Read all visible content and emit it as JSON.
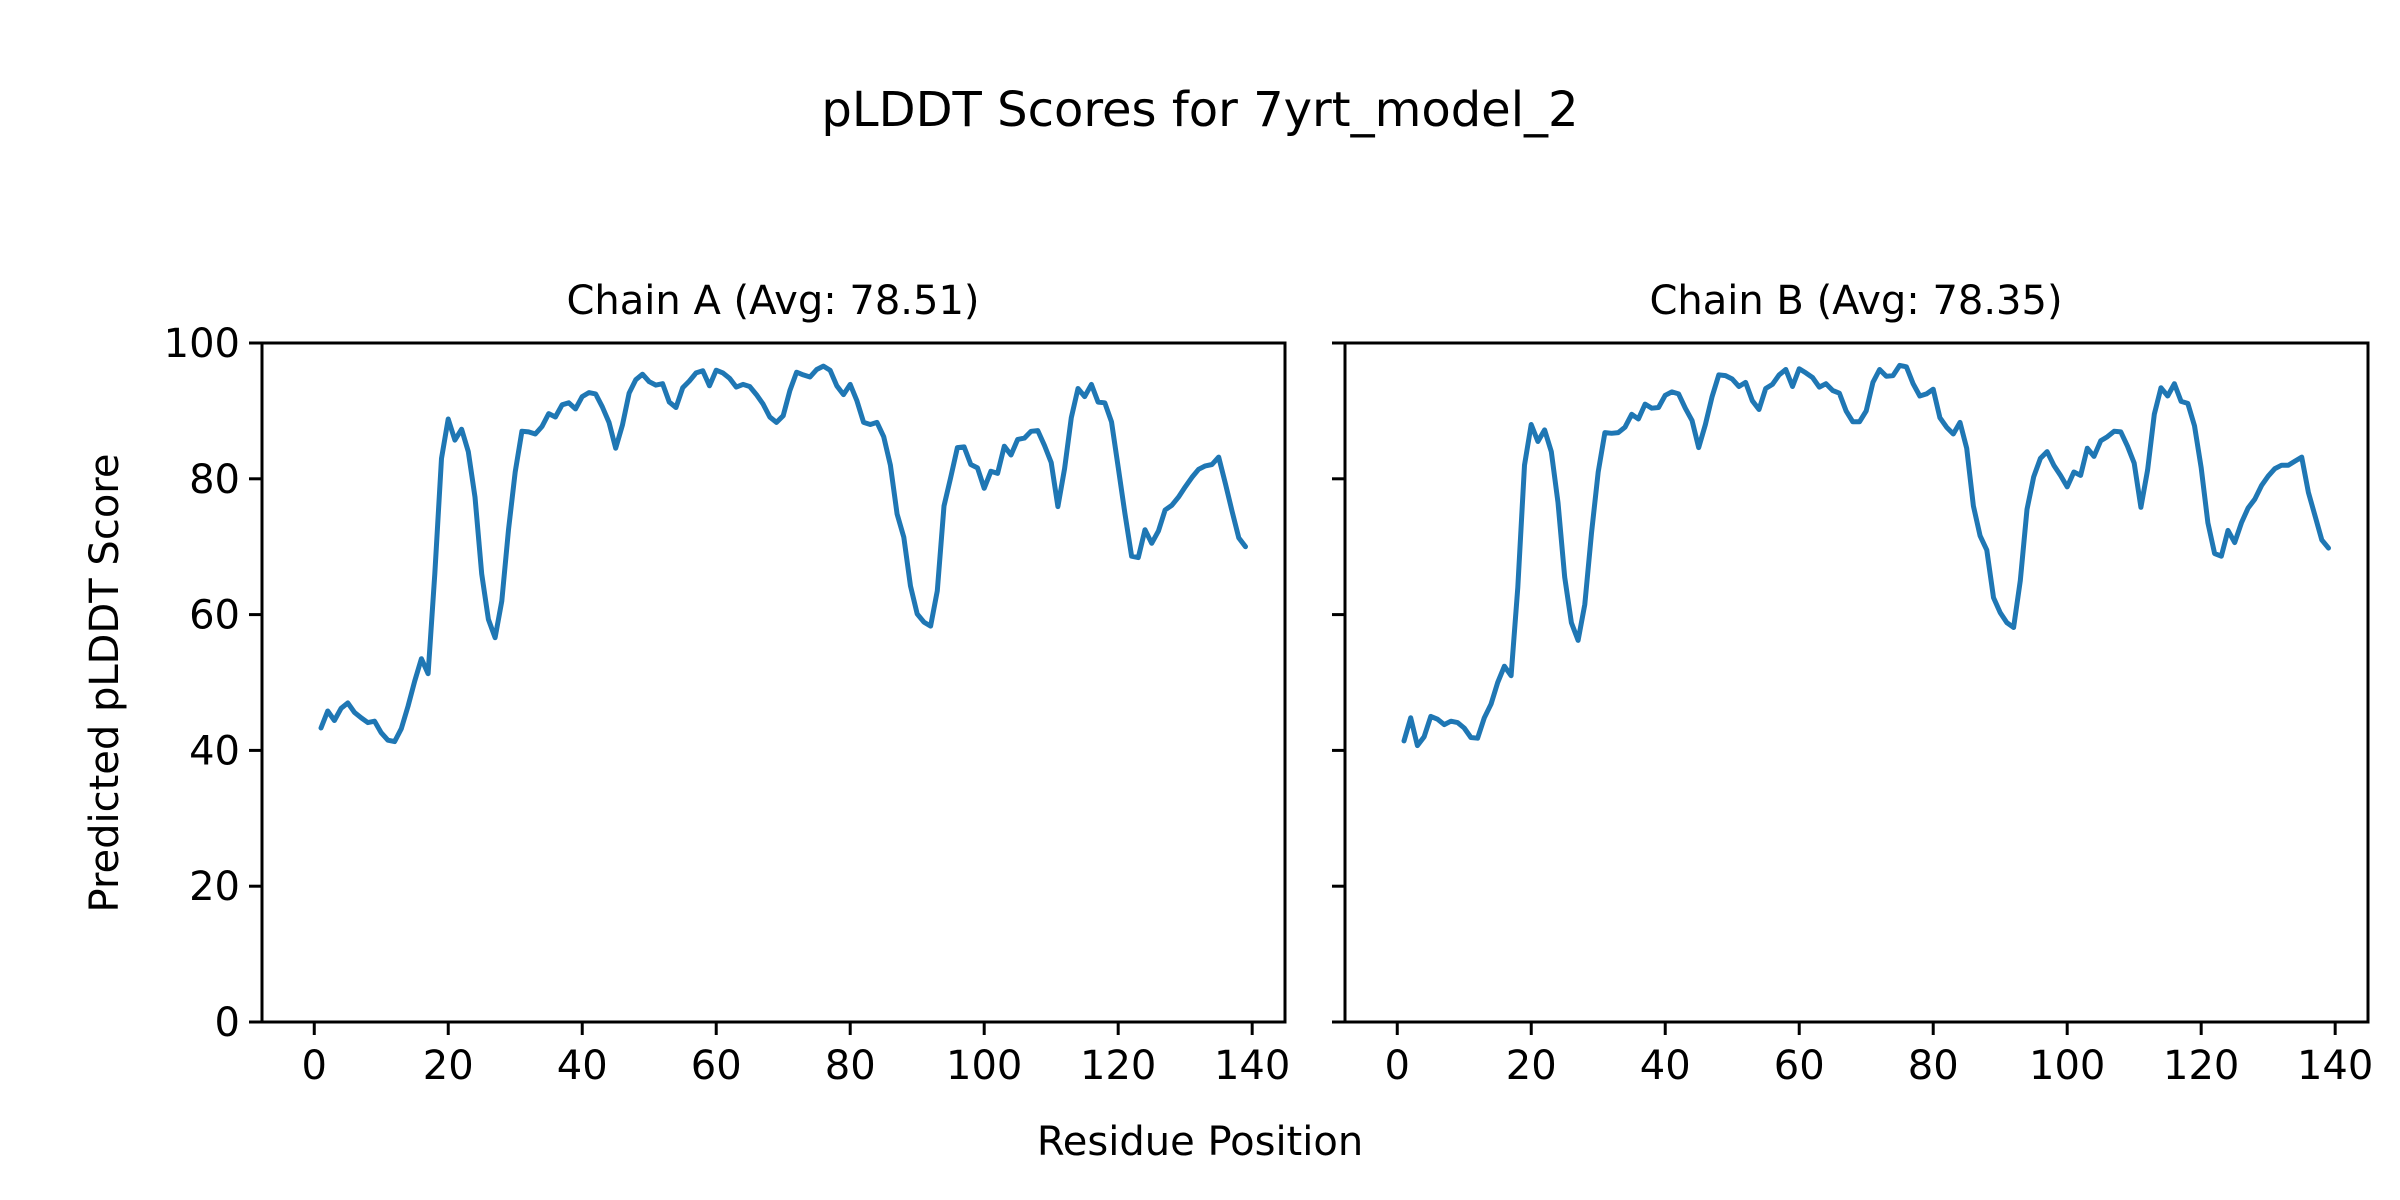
{
  "figure": {
    "suptitle": "pLDDT Scores for 7yrt_model_2",
    "xlabel": "Residue Position",
    "ylabel": "Predicted pLDDT Score",
    "background_color": "#ffffff",
    "text_color": "#000000",
    "spine_color": "#000000",
    "line_color": "#1f77b4"
  },
  "chart_data": [
    {
      "type": "line",
      "title": "Chain A (Avg: 78.51)",
      "chain": "A",
      "avg": 78.51,
      "xlabel": "Residue Position",
      "ylabel": "Predicted pLDDT Score",
      "xlim": [
        -7.8,
        144.9
      ],
      "ylim": [
        0,
        100
      ],
      "xticks": [
        0,
        20,
        40,
        60,
        80,
        100,
        120,
        140
      ],
      "yticks": [
        0,
        20,
        40,
        60,
        80,
        100
      ],
      "grid": false,
      "legend": "none",
      "series": [
        {
          "name": "Chain A pLDDT",
          "color": "#1f77b4",
          "x_start": 1,
          "x_step": 1,
          "n_points": 139,
          "y": [
            43.3,
            45.8,
            44.4,
            46.2,
            47.0,
            45.6,
            44.8,
            44.1,
            44.3,
            42.6,
            41.5,
            41.3,
            43.2,
            46.5,
            50.2,
            53.5,
            51.3,
            66.0,
            83.0,
            88.8,
            85.7,
            87.3,
            84.0,
            77.3,
            66.0,
            59.3,
            56.6,
            62.0,
            72.5,
            81.0,
            87.0,
            86.9,
            86.6,
            87.7,
            89.6,
            89.1,
            90.9,
            91.2,
            90.3,
            92.1,
            92.7,
            92.5,
            90.6,
            88.3,
            84.5,
            87.9,
            92.6,
            94.6,
            95.4,
            94.3,
            93.8,
            94.0,
            91.3,
            90.5,
            93.4,
            94.4,
            95.6,
            95.9,
            93.7,
            96.0,
            95.6,
            94.8,
            93.5,
            93.9,
            93.6,
            92.4,
            91.0,
            89.1,
            88.3,
            89.3,
            93.0,
            95.7,
            95.3,
            95.0,
            96.1,
            96.6,
            96.0,
            93.7,
            92.4,
            93.9,
            91.5,
            88.3,
            88.0,
            88.3,
            86.2,
            82.0,
            74.8,
            71.4,
            64.2,
            60.1,
            58.9,
            58.3,
            63.5,
            76.0,
            80.2,
            84.6,
            84.7,
            82.1,
            81.6,
            78.6,
            81.1,
            80.8,
            84.8,
            83.5,
            85.8,
            86.0,
            87.0,
            87.1,
            84.9,
            82.4,
            75.9,
            81.5,
            89.0,
            93.3,
            92.1,
            93.9,
            91.3,
            91.2,
            88.4,
            81.7,
            74.9,
            68.6,
            68.4,
            72.5,
            70.5,
            72.3,
            75.4,
            76.1,
            77.3,
            78.8,
            80.2,
            81.4,
            81.9,
            82.1,
            83.2,
            79.3,
            75.2,
            71.3,
            70.0
          ]
        }
      ]
    },
    {
      "type": "line",
      "title": "Chain B (Avg: 78.35)",
      "chain": "B",
      "avg": 78.35,
      "xlabel": "Residue Position",
      "ylabel": "Predicted pLDDT Score",
      "xlim": [
        -7.8,
        144.9
      ],
      "ylim": [
        0,
        100
      ],
      "xticks": [
        0,
        20,
        40,
        60,
        80,
        100,
        120,
        140
      ],
      "yticks": [
        0,
        20,
        40,
        60,
        80,
        100
      ],
      "grid": false,
      "legend": "none",
      "series": [
        {
          "name": "Chain B pLDDT",
          "color": "#1f77b4",
          "x_start": 1,
          "x_step": 1,
          "n_points": 139,
          "y": [
            41.4,
            44.8,
            40.7,
            42.0,
            45.0,
            44.6,
            43.8,
            44.3,
            44.1,
            43.3,
            41.9,
            41.8,
            44.8,
            46.8,
            50.0,
            52.4,
            51.0,
            64.0,
            82.0,
            88.0,
            85.5,
            87.2,
            84.0,
            76.5,
            65.5,
            58.8,
            56.2,
            61.5,
            72.0,
            81.0,
            86.8,
            86.7,
            86.8,
            87.6,
            89.5,
            88.8,
            91.0,
            90.4,
            90.5,
            92.3,
            92.8,
            92.5,
            90.4,
            88.6,
            84.6,
            88.0,
            92.1,
            95.3,
            95.2,
            94.7,
            93.6,
            94.2,
            91.5,
            90.2,
            93.3,
            93.9,
            95.3,
            96.1,
            93.6,
            96.2,
            95.6,
            94.9,
            93.5,
            94.0,
            93.0,
            92.6,
            90.0,
            88.4,
            88.4,
            90.0,
            94.2,
            96.1,
            95.1,
            95.2,
            96.7,
            96.5,
            94.0,
            92.2,
            92.5,
            93.2,
            89.0,
            87.6,
            86.6,
            88.3,
            84.5,
            76.0,
            71.6,
            69.5,
            62.5,
            60.3,
            58.8,
            58.1,
            65.0,
            75.5,
            80.3,
            83.0,
            84.0,
            82.0,
            80.5,
            78.8,
            81.0,
            80.5,
            84.5,
            83.3,
            85.6,
            86.2,
            87.0,
            86.9,
            84.8,
            82.3,
            75.8,
            81.3,
            89.5,
            93.4,
            92.2,
            94.0,
            91.4,
            91.1,
            87.8,
            81.6,
            73.5,
            69.0,
            68.6,
            72.4,
            70.6,
            73.5,
            75.7,
            77.0,
            79.0,
            80.4,
            81.5,
            82.0,
            82.0,
            82.6,
            83.2,
            78.0,
            74.5,
            71.0,
            69.8
          ]
        }
      ]
    }
  ]
}
